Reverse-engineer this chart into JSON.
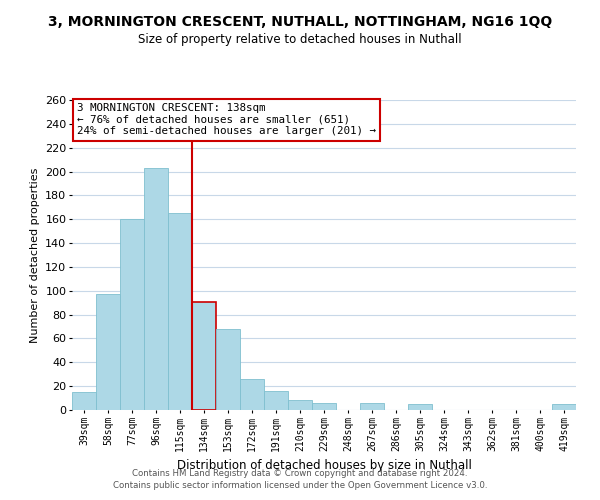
{
  "title": "3, MORNINGTON CRESCENT, NUTHALL, NOTTINGHAM, NG16 1QQ",
  "subtitle": "Size of property relative to detached houses in Nuthall",
  "xlabel": "Distribution of detached houses by size in Nuthall",
  "ylabel": "Number of detached properties",
  "bar_labels": [
    "39sqm",
    "58sqm",
    "77sqm",
    "96sqm",
    "115sqm",
    "134sqm",
    "153sqm",
    "172sqm",
    "191sqm",
    "210sqm",
    "229sqm",
    "248sqm",
    "267sqm",
    "286sqm",
    "305sqm",
    "324sqm",
    "343sqm",
    "362sqm",
    "381sqm",
    "400sqm",
    "419sqm"
  ],
  "bar_values": [
    15,
    97,
    160,
    203,
    165,
    91,
    68,
    26,
    16,
    8,
    6,
    0,
    6,
    0,
    5,
    0,
    0,
    0,
    0,
    0,
    5
  ],
  "bar_color": "#add8e6",
  "bar_edge_color": "#7fbfcf",
  "highlight_bar_index": 5,
  "highlight_bar_edge_color": "#cc0000",
  "vline_color": "#cc0000",
  "annotation_title": "3 MORNINGTON CRESCENT: 138sqm",
  "annotation_line1": "← 76% of detached houses are smaller (651)",
  "annotation_line2": "24% of semi-detached houses are larger (201) →",
  "annotation_box_color": "#ffffff",
  "annotation_box_edge_color": "#cc0000",
  "ylim": [
    0,
    260
  ],
  "yticks": [
    0,
    20,
    40,
    60,
    80,
    100,
    120,
    140,
    160,
    180,
    200,
    220,
    240,
    260
  ],
  "footer_line1": "Contains HM Land Registry data © Crown copyright and database right 2024.",
  "footer_line2": "Contains public sector information licensed under the Open Government Licence v3.0.",
  "bg_color": "#ffffff",
  "grid_color": "#c8d8e8"
}
